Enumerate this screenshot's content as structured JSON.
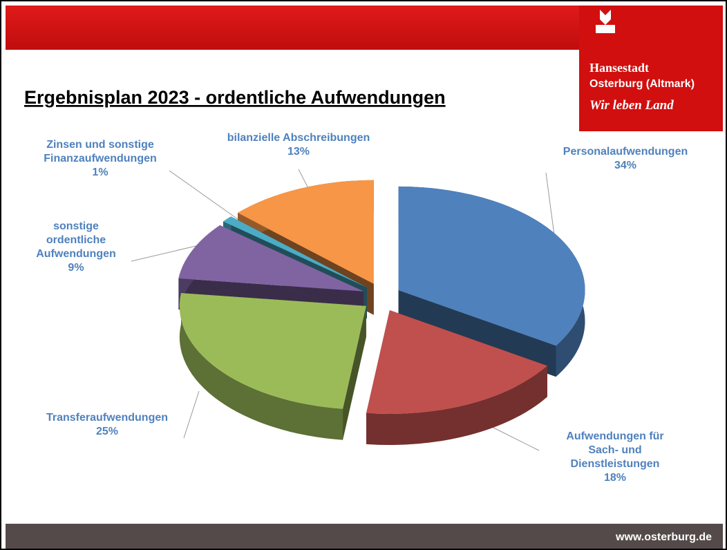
{
  "header": {
    "title": "Ergebnisplan 2023 - ordentliche Aufwendungen",
    "logo": {
      "line1": "Hansestadt",
      "line2": "Osterburg (Altmark)",
      "slogan": "Wir leben Land"
    }
  },
  "footer": {
    "url": "www.osterburg.de"
  },
  "chart_data": {
    "type": "pie",
    "categories": [
      "Personalaufwendungen",
      "Aufwendungen für\nSach- und\nDienstleistungen",
      "Transferaufwendungen",
      "sonstige\nordentliche\nAufwendungen",
      "Zinsen und sonstige\nFinanzaufwendungen",
      "bilanzielle Abschreibungen"
    ],
    "values": [
      34,
      18,
      25,
      9,
      1,
      13
    ],
    "value_labels": [
      "34%",
      "18%",
      "25%",
      "9%",
      "1%",
      "13%"
    ],
    "colors": [
      "#4f81bd",
      "#c0504d",
      "#9bbb59",
      "#8064a2",
      "#4bacc6",
      "#f79646"
    ]
  }
}
